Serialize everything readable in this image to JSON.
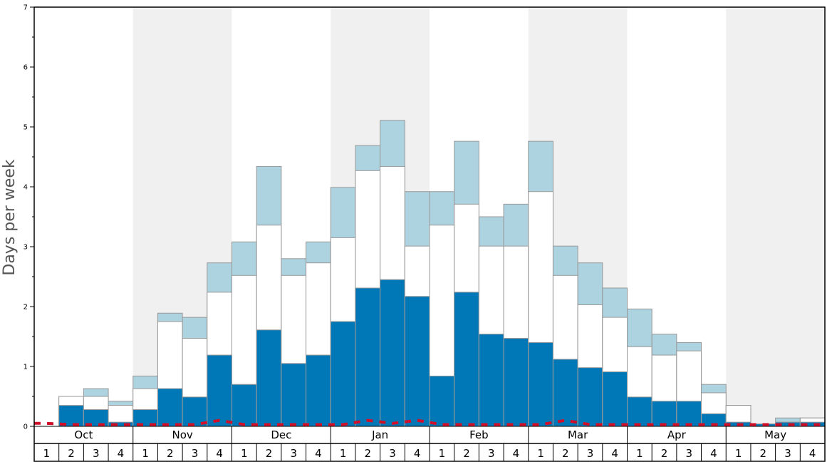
{
  "chart_data": {
    "type": "bar",
    "stacked_overlapping": true,
    "ylabel": "Days per week",
    "ylim": [
      0,
      7
    ],
    "yticks": [
      "0",
      "1",
      "2",
      "3",
      "4",
      "5",
      "6",
      "7"
    ],
    "months": [
      "Oct",
      "Nov",
      "Dec",
      "Jan",
      "Feb",
      "Mar",
      "Apr",
      "May"
    ],
    "weeks_per_month": [
      "1",
      "2",
      "3",
      "4"
    ],
    "alternating_month_shading": true,
    "colors": {
      "dark_series": "#0077b6",
      "middle_series": "#ffffff",
      "light_series": "#add3e0",
      "bar_border": "#999999",
      "dashed_line": "#d0102a",
      "shade_band": "#f0f0f0",
      "axis": "#000000",
      "ylabel": "#555555"
    },
    "series": [
      {
        "key": "dark",
        "values": [
          0.0,
          0.35,
          0.28,
          0.07,
          0.28,
          0.63,
          0.49,
          1.19,
          0.7,
          1.61,
          1.05,
          1.19,
          1.75,
          2.31,
          2.45,
          2.17,
          0.84,
          2.24,
          1.54,
          1.47,
          1.4,
          1.12,
          0.98,
          0.91,
          0.49,
          0.42,
          0.42,
          0.21,
          0.07,
          0.04,
          0.07,
          0.07
        ]
      },
      {
        "key": "middle",
        "values": [
          0.0,
          0.5,
          0.5,
          0.35,
          0.63,
          1.75,
          1.47,
          2.24,
          2.52,
          3.36,
          2.52,
          2.73,
          3.15,
          4.27,
          4.34,
          3.01,
          3.36,
          3.71,
          3.01,
          3.01,
          3.92,
          2.52,
          2.03,
          1.82,
          1.33,
          1.19,
          1.26,
          0.56,
          0.35,
          0.04,
          0.07,
          0.14
        ]
      },
      {
        "key": "light",
        "values": [
          0.0,
          0.5,
          0.63,
          0.42,
          0.84,
          1.89,
          1.82,
          2.73,
          3.08,
          4.34,
          2.8,
          3.08,
          3.99,
          4.69,
          5.11,
          3.92,
          3.92,
          4.76,
          3.5,
          3.71,
          4.76,
          3.01,
          2.73,
          2.31,
          1.96,
          1.54,
          1.4,
          0.7,
          0.35,
          0.04,
          0.14,
          0.14
        ]
      },
      {
        "key": "dashed",
        "values": [
          0.05,
          0.03,
          0.03,
          0.03,
          0.03,
          0.03,
          0.03,
          0.1,
          0.03,
          0.03,
          0.03,
          0.03,
          0.03,
          0.1,
          0.05,
          0.1,
          0.03,
          0.03,
          0.03,
          0.03,
          0.03,
          0.1,
          0.03,
          0.03,
          0.03,
          0.03,
          0.03,
          0.03,
          0.03,
          0.03,
          0.03,
          0.03
        ]
      }
    ]
  }
}
